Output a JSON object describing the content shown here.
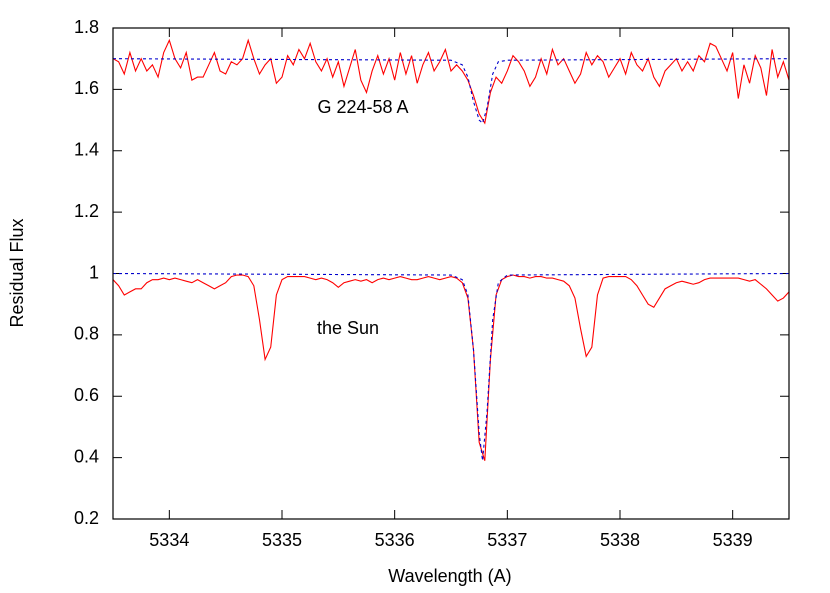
{
  "chart_data": {
    "type": "line",
    "x_label": "Wavelength (A)",
    "y_label": "Residual Flux",
    "annotations": [
      "G 224-58 A",
      "the Sun"
    ],
    "xlim": [
      5333.5,
      5339.5
    ],
    "ylim": [
      0.2,
      1.8
    ],
    "xticks": [
      5334,
      5335,
      5336,
      5337,
      5338,
      5339
    ],
    "yticks": [
      0.2,
      0.4,
      0.6,
      0.8,
      1,
      1.2,
      1.4,
      1.6,
      1.8
    ],
    "x": [
      5333.5,
      5333.55,
      5333.6,
      5333.65,
      5333.7,
      5333.75,
      5333.8,
      5333.85,
      5333.9,
      5333.95,
      5334,
      5334.05,
      5334.1,
      5334.15,
      5334.2,
      5334.25,
      5334.3,
      5334.35,
      5334.4,
      5334.45,
      5334.5,
      5334.55,
      5334.6,
      5334.65,
      5334.7,
      5334.75,
      5334.8,
      5334.85,
      5334.9,
      5334.95,
      5335,
      5335.05,
      5335.1,
      5335.15,
      5335.2,
      5335.25,
      5335.3,
      5335.35,
      5335.4,
      5335.45,
      5335.5,
      5335.55,
      5335.6,
      5335.65,
      5335.7,
      5335.75,
      5335.8,
      5335.85,
      5335.9,
      5335.95,
      5336,
      5336.05,
      5336.1,
      5336.15,
      5336.2,
      5336.25,
      5336.3,
      5336.35,
      5336.4,
      5336.45,
      5336.5,
      5336.55,
      5336.6,
      5336.65,
      5336.7,
      5336.75,
      5336.8,
      5336.85,
      5336.9,
      5336.95,
      5337,
      5337.05,
      5337.1,
      5337.15,
      5337.2,
      5337.25,
      5337.3,
      5337.35,
      5337.4,
      5337.45,
      5337.5,
      5337.55,
      5337.6,
      5337.65,
      5337.7,
      5337.75,
      5337.8,
      5337.85,
      5337.9,
      5337.95,
      5338,
      5338.05,
      5338.1,
      5338.15,
      5338.2,
      5338.25,
      5338.3,
      5338.35,
      5338.4,
      5338.45,
      5338.5,
      5338.55,
      5338.6,
      5338.65,
      5338.7,
      5338.75,
      5338.8,
      5338.85,
      5338.9,
      5338.95,
      5339,
      5339.05,
      5339.1,
      5339.15,
      5339.2,
      5339.25,
      5339.3,
      5339.35,
      5339.4,
      5339.45,
      5339.5
    ],
    "series": [
      {
        "color": "#ff0000",
        "dash": false,
        "values": [
          1.7,
          1.69,
          1.65,
          1.72,
          1.66,
          1.7,
          1.66,
          1.68,
          1.64,
          1.72,
          1.76,
          1.7,
          1.67,
          1.72,
          1.63,
          1.64,
          1.64,
          1.68,
          1.72,
          1.66,
          1.65,
          1.69,
          1.68,
          1.7,
          1.76,
          1.7,
          1.65,
          1.68,
          1.7,
          1.62,
          1.64,
          1.71,
          1.68,
          1.73,
          1.7,
          1.75,
          1.69,
          1.66,
          1.7,
          1.64,
          1.69,
          1.61,
          1.67,
          1.73,
          1.63,
          1.59,
          1.66,
          1.71,
          1.65,
          1.7,
          1.63,
          1.72,
          1.65,
          1.71,
          1.62,
          1.68,
          1.72,
          1.66,
          1.69,
          1.73,
          1.66,
          1.68,
          1.66,
          1.63,
          1.58,
          1.52,
          1.49,
          1.59,
          1.64,
          1.62,
          1.66,
          1.71,
          1.69,
          1.66,
          1.61,
          1.64,
          1.7,
          1.65,
          1.73,
          1.68,
          1.7,
          1.66,
          1.62,
          1.65,
          1.72,
          1.68,
          1.71,
          1.69,
          1.64,
          1.67,
          1.7,
          1.65,
          1.72,
          1.68,
          1.66,
          1.7,
          1.64,
          1.61,
          1.66,
          1.68,
          1.7,
          1.66,
          1.69,
          1.66,
          1.71,
          1.69,
          1.75,
          1.74,
          1.7,
          1.66,
          1.72,
          1.57,
          1.68,
          1.62,
          1.71,
          1.67,
          1.58,
          1.73,
          1.64,
          1.69,
          1.63
        ]
      },
      {
        "color": "#0000cc",
        "dash": true,
        "x": [
          5333.5,
          5336.5,
          5336.6,
          5336.65,
          5336.7,
          5336.75,
          5336.78,
          5336.82,
          5336.87,
          5336.92,
          5337.0,
          5339.5
        ],
        "values": [
          1.7,
          1.695,
          1.68,
          1.64,
          1.56,
          1.5,
          1.49,
          1.54,
          1.65,
          1.69,
          1.695,
          1.7
        ]
      },
      {
        "color": "#ff0000",
        "dash": false,
        "values": [
          0.98,
          0.96,
          0.93,
          0.94,
          0.95,
          0.95,
          0.97,
          0.98,
          0.98,
          0.985,
          0.98,
          0.985,
          0.98,
          0.975,
          0.97,
          0.98,
          0.97,
          0.96,
          0.95,
          0.96,
          0.97,
          0.99,
          0.995,
          0.995,
          0.99,
          0.96,
          0.85,
          0.72,
          0.76,
          0.93,
          0.98,
          0.99,
          0.99,
          0.99,
          0.99,
          0.985,
          0.98,
          0.985,
          0.98,
          0.97,
          0.955,
          0.97,
          0.975,
          0.98,
          0.975,
          0.98,
          0.97,
          0.98,
          0.985,
          0.98,
          0.985,
          0.99,
          0.985,
          0.98,
          0.98,
          0.985,
          0.99,
          0.985,
          0.98,
          0.985,
          0.99,
          0.985,
          0.97,
          0.92,
          0.75,
          0.45,
          0.39,
          0.72,
          0.93,
          0.98,
          0.99,
          0.995,
          0.99,
          0.99,
          0.985,
          0.99,
          0.99,
          0.985,
          0.985,
          0.98,
          0.975,
          0.96,
          0.92,
          0.82,
          0.73,
          0.76,
          0.93,
          0.985,
          0.99,
          0.99,
          0.99,
          0.99,
          0.98,
          0.96,
          0.93,
          0.9,
          0.89,
          0.92,
          0.95,
          0.96,
          0.97,
          0.975,
          0.97,
          0.965,
          0.97,
          0.98,
          0.985,
          0.985,
          0.985,
          0.985,
          0.985,
          0.985,
          0.98,
          0.975,
          0.98,
          0.965,
          0.95,
          0.93,
          0.91,
          0.92,
          0.94
        ]
      },
      {
        "color": "#0000cc",
        "dash": true,
        "x": [
          5333.5,
          5336.5,
          5336.6,
          5336.65,
          5336.7,
          5336.75,
          5336.78,
          5336.82,
          5336.87,
          5336.92,
          5337.0,
          5339.5
        ],
        "values": [
          1,
          0.995,
          0.98,
          0.93,
          0.75,
          0.48,
          0.39,
          0.55,
          0.85,
          0.97,
          0.995,
          1
        ]
      }
    ]
  }
}
